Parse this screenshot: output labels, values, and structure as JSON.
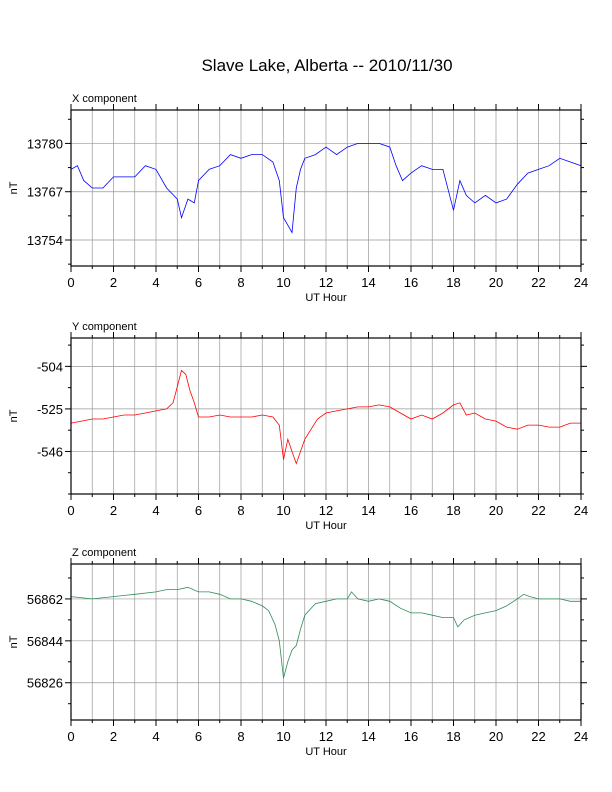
{
  "title": "Slave Lake, Alberta -- 2010/11/30",
  "colors": {
    "x": "#0000ff",
    "y": "#ff0000",
    "z": "#2e8b57",
    "grid": "#999999"
  },
  "chart_data": [
    {
      "type": "line",
      "title": "X component",
      "xlabel": "UT Hour",
      "ylabel": "nT",
      "xlim": [
        0,
        24
      ],
      "ylim": [
        13747,
        13789
      ],
      "xticks": [
        0,
        2,
        4,
        6,
        8,
        10,
        12,
        14,
        16,
        18,
        20,
        22,
        24
      ],
      "yticks": [
        13754,
        13767,
        13780
      ],
      "grid": true,
      "series": [
        {
          "x": [
            0,
            0.3,
            0.6,
            1.0,
            1.5,
            2.0,
            2.5,
            3.0,
            3.5,
            4.0,
            4.5,
            5.0,
            5.2,
            5.5,
            5.8,
            6.0,
            6.5,
            7.0,
            7.5,
            8.0,
            8.5,
            9.0,
            9.5,
            9.8,
            10.0,
            10.2,
            10.4,
            10.6,
            10.8,
            11.0,
            11.5,
            12.0,
            12.5,
            13.0,
            13.5,
            14.0,
            14.5,
            15.0,
            15.3,
            15.6,
            16.0,
            16.5,
            17.0,
            17.5,
            18.0,
            18.3,
            18.6,
            19.0,
            19.5,
            20.0,
            20.5,
            21.0,
            21.5,
            22.0,
            22.5,
            23.0,
            23.5,
            24.0
          ],
          "values": [
            13773,
            13774,
            13770,
            13768,
            13768,
            13771,
            13771,
            13771,
            13774,
            13773,
            13768,
            13765,
            13760,
            13765,
            13764,
            13770,
            13773,
            13774,
            13777,
            13776,
            13777,
            13777,
            13775,
            13770,
            13760,
            13758,
            13756,
            13768,
            13773,
            13776,
            13777,
            13779,
            13777,
            13779,
            13780,
            13780,
            13780,
            13779,
            13774,
            13770,
            13772,
            13774,
            13773,
            13773,
            13762,
            13770,
            13766,
            13764,
            13766,
            13764,
            13765,
            13769,
            13772,
            13773,
            13774,
            13776,
            13775,
            13774
          ]
        }
      ]
    },
    {
      "type": "line",
      "title": "Y component",
      "xlabel": "UT Hour",
      "ylabel": "nT",
      "xlim": [
        0,
        24
      ],
      "ylim": [
        -567,
        -490
      ],
      "xticks": [
        0,
        2,
        4,
        6,
        8,
        10,
        12,
        14,
        16,
        18,
        20,
        22,
        24
      ],
      "yticks": [
        -546,
        -525,
        -504
      ],
      "grid": true,
      "series": [
        {
          "x": [
            0,
            0.5,
            1.0,
            1.5,
            2.0,
            2.5,
            3.0,
            3.5,
            4.0,
            4.5,
            4.8,
            5.0,
            5.2,
            5.4,
            5.6,
            5.8,
            6.0,
            6.5,
            7.0,
            7.5,
            8.0,
            8.5,
            9.0,
            9.5,
            9.8,
            10.0,
            10.2,
            10.4,
            10.6,
            10.8,
            11.0,
            11.3,
            11.6,
            12.0,
            12.5,
            13.0,
            13.5,
            14.0,
            14.5,
            15.0,
            15.5,
            16.0,
            16.5,
            17.0,
            17.5,
            18.0,
            18.3,
            18.6,
            19.0,
            19.5,
            20.0,
            20.5,
            21.0,
            21.5,
            22.0,
            22.5,
            23.0,
            23.5,
            24.0
          ],
          "values": [
            -532,
            -531,
            -530,
            -530,
            -529,
            -528,
            -528,
            -527,
            -526,
            -525,
            -522,
            -514,
            -506,
            -508,
            -516,
            -522,
            -529,
            -529,
            -528,
            -529,
            -529,
            -529,
            -528,
            -529,
            -533,
            -550,
            -540,
            -546,
            -552,
            -546,
            -540,
            -535,
            -530,
            -527,
            -526,
            -525,
            -524,
            -524,
            -523,
            -524,
            -527,
            -530,
            -528,
            -530,
            -527,
            -523,
            -522,
            -528,
            -527,
            -530,
            -531,
            -534,
            -535,
            -533,
            -533,
            -534,
            -534,
            -532,
            -532
          ]
        }
      ]
    },
    {
      "type": "line",
      "title": "Z component",
      "xlabel": "UT Hour",
      "ylabel": "nT",
      "xlim": [
        0,
        24
      ],
      "ylim": [
        56810,
        56877
      ],
      "xticks": [
        0,
        2,
        4,
        6,
        8,
        10,
        12,
        14,
        16,
        18,
        20,
        22,
        24
      ],
      "yticks": [
        56826,
        56844,
        56862
      ],
      "grid": true,
      "series": [
        {
          "x": [
            0,
            1.0,
            2.0,
            3.0,
            4.0,
            4.5,
            5.0,
            5.5,
            6.0,
            6.5,
            7.0,
            7.5,
            8.0,
            8.5,
            9.0,
            9.3,
            9.6,
            9.8,
            10.0,
            10.2,
            10.4,
            10.6,
            10.8,
            11.0,
            11.5,
            12.0,
            12.5,
            13.0,
            13.2,
            13.5,
            14.0,
            14.5,
            15.0,
            15.5,
            16.0,
            16.5,
            17.0,
            17.5,
            18.0,
            18.2,
            18.5,
            19.0,
            19.5,
            20.0,
            20.5,
            21.0,
            21.3,
            21.6,
            22.0,
            22.5,
            23.0,
            23.5,
            24.0
          ],
          "values": [
            56863,
            56862,
            56863,
            56864,
            56865,
            56866,
            56866,
            56867,
            56865,
            56865,
            56864,
            56862,
            56862,
            56861,
            56859,
            56857,
            56851,
            56844,
            56828,
            56835,
            56840,
            56842,
            56849,
            56855,
            56860,
            56861,
            56862,
            56862,
            56865,
            56862,
            56861,
            56862,
            56861,
            56858,
            56856,
            56856,
            56855,
            56854,
            56854,
            56850,
            56853,
            56855,
            56856,
            56857,
            56859,
            56862,
            56864,
            56863,
            56862,
            56862,
            56862,
            56861,
            56861
          ]
        }
      ]
    }
  ]
}
